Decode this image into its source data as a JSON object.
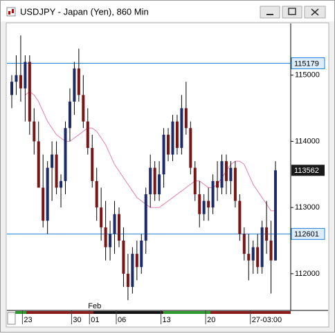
{
  "chart_data": {
    "type": "candlestick",
    "title": "USDJPY - Japan (Yen), 860 Min",
    "categories": [
      null,
      null,
      null,
      "23",
      null,
      null,
      null,
      null,
      null,
      null,
      null,
      null,
      null,
      null,
      "30",
      null,
      null,
      null,
      "01",
      null,
      null,
      null,
      null,
      null,
      "06",
      null,
      null,
      null,
      null,
      null,
      null,
      null,
      null,
      null,
      "13",
      null,
      null,
      null,
      null,
      null,
      null,
      null,
      null,
      null,
      "20",
      null,
      null,
      null,
      null,
      null,
      null,
      null,
      null,
      null,
      "27-03:00",
      null,
      null,
      null,
      null,
      null
    ],
    "months": [
      null,
      null,
      null,
      null,
      null,
      null,
      null,
      null,
      null,
      null,
      null,
      null,
      null,
      null,
      null,
      null,
      null,
      null,
      "Feb",
      null,
      null,
      null,
      null,
      null,
      null,
      null,
      null,
      null,
      null,
      null,
      null,
      null,
      null,
      null,
      null,
      null,
      null,
      null,
      null,
      null,
      null,
      null,
      null,
      null,
      null,
      null,
      null,
      null,
      null,
      null,
      null,
      null,
      null,
      null,
      null,
      null,
      null,
      null,
      null,
      null
    ],
    "open": [
      114700,
      114900,
      115000,
      114800,
      115200,
      114300,
      114000,
      113300,
      112800,
      113600,
      113800,
      113300,
      113400,
      114200,
      114600,
      115100,
      114700,
      114300,
      113900,
      113400,
      113000,
      112700,
      112400,
      112600,
      112900,
      112500,
      112000,
      111800,
      112300,
      112100,
      112500,
      113200,
      113600,
      113200,
      113500,
      114100,
      113800,
      114300,
      113900,
      114500,
      114200,
      113600,
      113200,
      112900,
      113100,
      113000,
      113400,
      113300,
      113700,
      113400,
      113600,
      113100,
      112600,
      112300,
      112200,
      112400,
      112100,
      112700,
      112500,
      112200
    ],
    "high": [
      115000,
      115300,
      115600,
      115300,
      115300,
      114500,
      114300,
      113800,
      113700,
      114000,
      114000,
      113500,
      114300,
      114800,
      115200,
      115400,
      115000,
      114500,
      114100,
      113600,
      113300,
      113100,
      112800,
      113100,
      113000,
      112700,
      112300,
      112400,
      112500,
      112600,
      113300,
      113800,
      113700,
      113700,
      114200,
      114200,
      114400,
      114400,
      114700,
      114900,
      114300,
      113700,
      113400,
      113200,
      113300,
      113500,
      113700,
      113800,
      113800,
      113700,
      113700,
      113200,
      112700,
      112600,
      112500,
      112600,
      112800,
      113100,
      112800,
      113700
    ],
    "low": [
      114500,
      114700,
      114600,
      114300,
      114100,
      113800,
      113300,
      112700,
      112600,
      113100,
      113200,
      113000,
      113200,
      114000,
      114400,
      114600,
      114200,
      113800,
      113300,
      112800,
      112500,
      112200,
      112200,
      112300,
      112400,
      111800,
      111600,
      111700,
      111900,
      112000,
      112300,
      113000,
      113100,
      113100,
      113300,
      113700,
      113700,
      113800,
      113800,
      114100,
      113500,
      113100,
      112700,
      112800,
      112800,
      112900,
      113100,
      113200,
      113200,
      113200,
      113000,
      112500,
      112200,
      111900,
      112000,
      112000,
      112000,
      112300,
      111700,
      112200
    ],
    "close": [
      114900,
      115000,
      114800,
      115200,
      114300,
      114000,
      113300,
      112800,
      113600,
      113800,
      113300,
      113400,
      114200,
      114600,
      115100,
      114700,
      114300,
      113900,
      113400,
      113000,
      112700,
      112400,
      112600,
      112900,
      112500,
      112000,
      111800,
      112300,
      112100,
      112500,
      113200,
      113600,
      113200,
      113500,
      114100,
      113800,
      114300,
      113900,
      114500,
      114200,
      113600,
      113200,
      112900,
      113100,
      113000,
      113400,
      113300,
      113700,
      113400,
      113600,
      113100,
      112600,
      112300,
      112200,
      112400,
      112100,
      112700,
      112500,
      112200,
      113562
    ],
    "up_color": "#1b2a6b",
    "down_color": "#7a1515",
    "wick_color": "#000000",
    "series": [
      {
        "color": "#e87bb0",
        "values": [
          null,
          null,
          null,
          114700,
          114750,
          114700,
          114600,
          114450,
          114300,
          114200,
          114100,
          114050,
          114000,
          114000,
          114050,
          114100,
          114150,
          114200,
          114200,
          114150,
          114050,
          113950,
          113800,
          113650,
          113550,
          113450,
          113350,
          113250,
          113150,
          113100,
          113050,
          113000,
          113000,
          113000,
          113050,
          113100,
          113150,
          113200,
          113250,
          113300,
          113350,
          113400,
          113400,
          113350,
          113300,
          113300,
          113350,
          113450,
          113550,
          113650,
          113700,
          113700,
          113650,
          113500,
          113350,
          113250,
          113150,
          113050,
          112950,
          112950
        ]
      }
    ],
    "hlines": [
      115179,
      112601
    ],
    "hline_color": "#1e7fd6",
    "ylim": [
      111445,
      115780
    ],
    "yticks": [
      112000,
      113000,
      114000,
      115000
    ],
    "grid": false
  }
}
